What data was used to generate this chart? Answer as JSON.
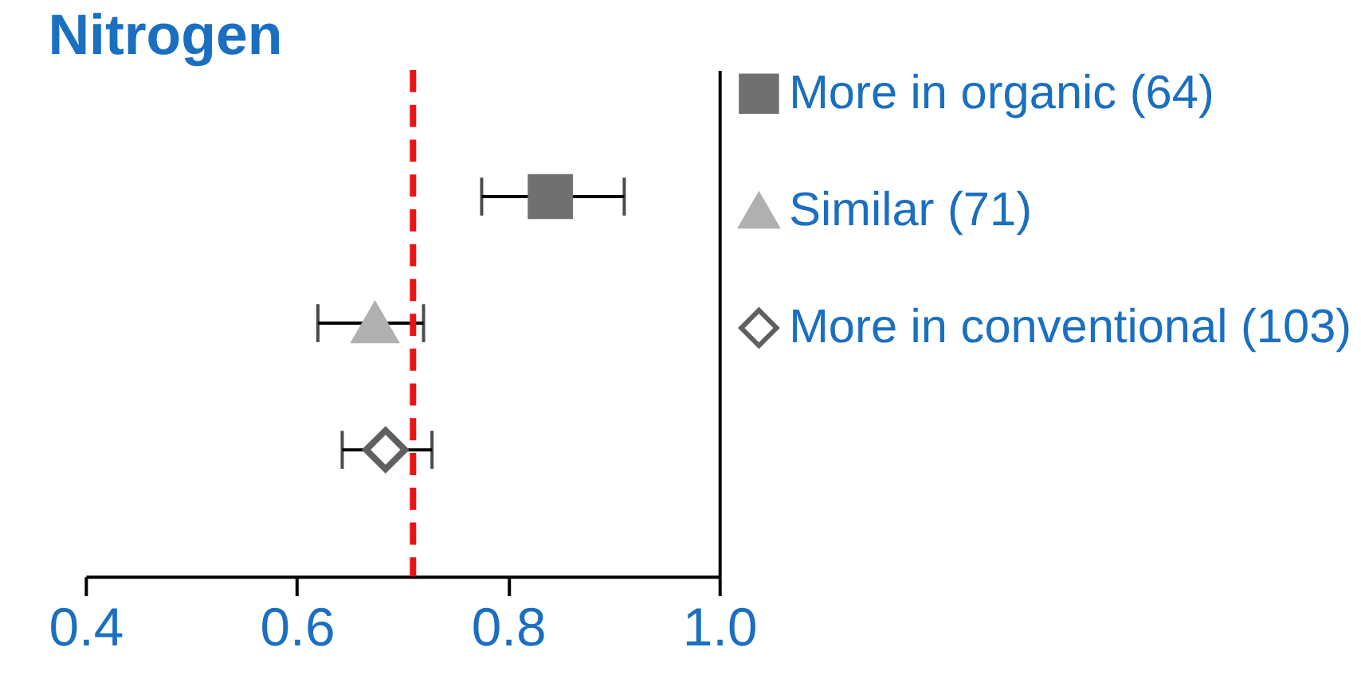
{
  "chart_data": {
    "type": "scatter",
    "title": "Nitrogen",
    "categories": [
      null,
      null,
      null
    ],
    "series": [
      {
        "name": "More in organic (64)",
        "color": "#707070",
        "marker": "square",
        "values": [
          0.84,
          null,
          null
        ],
        "errors": [
          [
            0.775,
            0.91
          ],
          null,
          null
        ]
      },
      {
        "name": "Similar (71)",
        "color": "#b0b0b0",
        "marker": "triangle",
        "values": [
          null,
          0.674,
          null
        ],
        "errors": [
          null,
          [
            0.62,
            0.72
          ],
          null
        ]
      },
      {
        "name": "More in conventional (103)",
        "color": "#606060",
        "marker": "diamond",
        "values": [
          null,
          null,
          0.684
        ],
        "errors": [
          null,
          null,
          [
            0.643,
            0.728
          ]
        ]
      }
    ],
    "orientation": "horizontal",
    "xlim": [
      0.4,
      1.0
    ],
    "xticks": [
      {
        "value": 0.4,
        "label": "0.4"
      },
      {
        "value": 0.6,
        "label": "0.6"
      },
      {
        "value": 0.8,
        "label": "0.8"
      },
      {
        "value": 1.0,
        "label": "1.0"
      }
    ],
    "ref_lines": [
      {
        "axis": "x",
        "value": 0.71,
        "color": "#ee1111",
        "line_style": "dashed"
      }
    ],
    "grid": false,
    "legend": "right",
    "tick_labels": "x"
  }
}
